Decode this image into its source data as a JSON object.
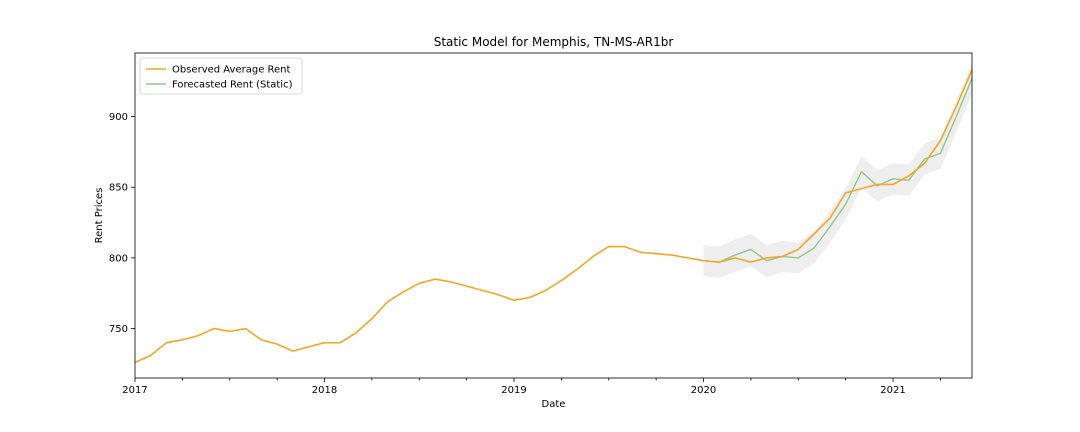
{
  "chart_data": {
    "type": "line",
    "title": "Static Model for Memphis, TN-MS-AR1br",
    "xlabel": "Date",
    "ylabel": "Rent Prices",
    "xlim": [
      "2017-01",
      "2021-06"
    ],
    "ylim": [
      715,
      945
    ],
    "x_major_ticks": [
      {
        "date": "2017-01",
        "label": "2017"
      },
      {
        "date": "2018-01",
        "label": "2018"
      },
      {
        "date": "2019-01",
        "label": "2019"
      },
      {
        "date": "2020-01",
        "label": "2020"
      },
      {
        "date": "2021-01",
        "label": "2021"
      }
    ],
    "y_ticks": [
      {
        "value": 750,
        "label": "750"
      },
      {
        "value": 800,
        "label": "800"
      },
      {
        "value": 850,
        "label": "850"
      },
      {
        "value": 900,
        "label": "900"
      }
    ],
    "grid": false,
    "legend_position": "top-left",
    "series": [
      {
        "name": "Observed Average Rent",
        "color": "#f5a623",
        "x": [
          "2017-01",
          "2017-02",
          "2017-03",
          "2017-04",
          "2017-05",
          "2017-06",
          "2017-07",
          "2017-08",
          "2017-09",
          "2017-10",
          "2017-11",
          "2017-12",
          "2018-01",
          "2018-02",
          "2018-03",
          "2018-04",
          "2018-05",
          "2018-06",
          "2018-07",
          "2018-08",
          "2018-09",
          "2018-10",
          "2018-11",
          "2018-12",
          "2019-01",
          "2019-02",
          "2019-03",
          "2019-04",
          "2019-05",
          "2019-06",
          "2019-07",
          "2019-08",
          "2019-09",
          "2019-10",
          "2019-11",
          "2019-12",
          "2020-01",
          "2020-02",
          "2020-03",
          "2020-04",
          "2020-05",
          "2020-06",
          "2020-07",
          "2020-08",
          "2020-09",
          "2020-10",
          "2020-11",
          "2020-12",
          "2021-01",
          "2021-02",
          "2021-03",
          "2021-04",
          "2021-05",
          "2021-06"
        ],
        "values": [
          726,
          731,
          740,
          742,
          745,
          750,
          748,
          750,
          742,
          739,
          734,
          737,
          740,
          740,
          747,
          757,
          769,
          776,
          782,
          785,
          783,
          780,
          777,
          774,
          770,
          772,
          777,
          784,
          792,
          801,
          808,
          808,
          804,
          803,
          802,
          800,
          798,
          797,
          800,
          797,
          800,
          801,
          806,
          817,
          828,
          846,
          849,
          852,
          852,
          858,
          867,
          883,
          907,
          933
        ]
      },
      {
        "name": "Forecasted Rent (Static)",
        "color": "#8fc98a",
        "x": [
          "2020-01",
          "2020-02",
          "2020-03",
          "2020-04",
          "2020-05",
          "2020-06",
          "2020-07",
          "2020-08",
          "2020-09",
          "2020-10",
          "2020-11",
          "2020-12",
          "2021-01",
          "2021-02",
          "2021-03",
          "2021-04",
          "2021-05",
          "2021-06"
        ],
        "values": [
          798,
          797,
          802,
          806,
          798,
          801,
          800,
          807,
          822,
          838,
          861,
          851,
          856,
          855,
          870,
          874,
          900,
          927
        ],
        "ci_lower": [
          787,
          786,
          790,
          794,
          786,
          790,
          789,
          796,
          811,
          827,
          850,
          840,
          845,
          844,
          859,
          863,
          889,
          916
        ],
        "ci_upper": [
          809,
          808,
          813,
          817,
          809,
          812,
          811,
          818,
          833,
          849,
          872,
          862,
          867,
          866,
          881,
          885,
          911,
          938
        ]
      }
    ]
  }
}
